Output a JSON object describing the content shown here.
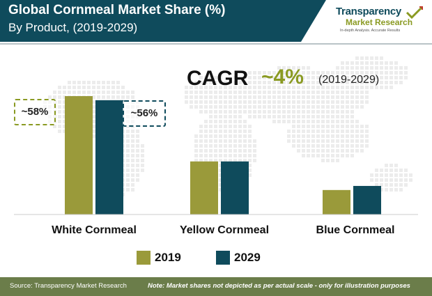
{
  "header": {
    "title": "Global Cornmeal Market Share (%)",
    "subtitle": "By Product, (2019-2029)"
  },
  "logo": {
    "line1": "Transparency",
    "line2": "Market Research",
    "tagline": "In-depth Analysis. Accurate Results"
  },
  "cagr": {
    "label": "CAGR",
    "value": "~4%",
    "period": "(2019-2029)"
  },
  "callouts": {
    "white_2019": "~58%",
    "white_2029": "~56%"
  },
  "colors": {
    "series_2019": "#9a9a3a",
    "series_2029": "#0f4b5c",
    "header": "#0f4b5c",
    "footer": "#6b7d4a",
    "accent": "#8a9a22"
  },
  "chart_data": {
    "type": "bar",
    "title": "Global Cornmeal Market Share (%)",
    "subtitle": "By Product, (2019-2029)",
    "categories": [
      "White Cornmeal",
      "Yellow Cornmeal",
      "Blue Cornmeal"
    ],
    "series": [
      {
        "name": "2019",
        "values": [
          58,
          26,
          12
        ]
      },
      {
        "name": "2029",
        "values": [
          56,
          26,
          14
        ]
      }
    ],
    "ylim": [
      0,
      58
    ],
    "xlabel": "",
    "ylabel": "",
    "legend": "bottom",
    "grid": false
  },
  "footer": {
    "source": "Source: Transparency Market Research",
    "note": "Note: Market shares not depicted as per actual scale - only for illustration purposes"
  }
}
